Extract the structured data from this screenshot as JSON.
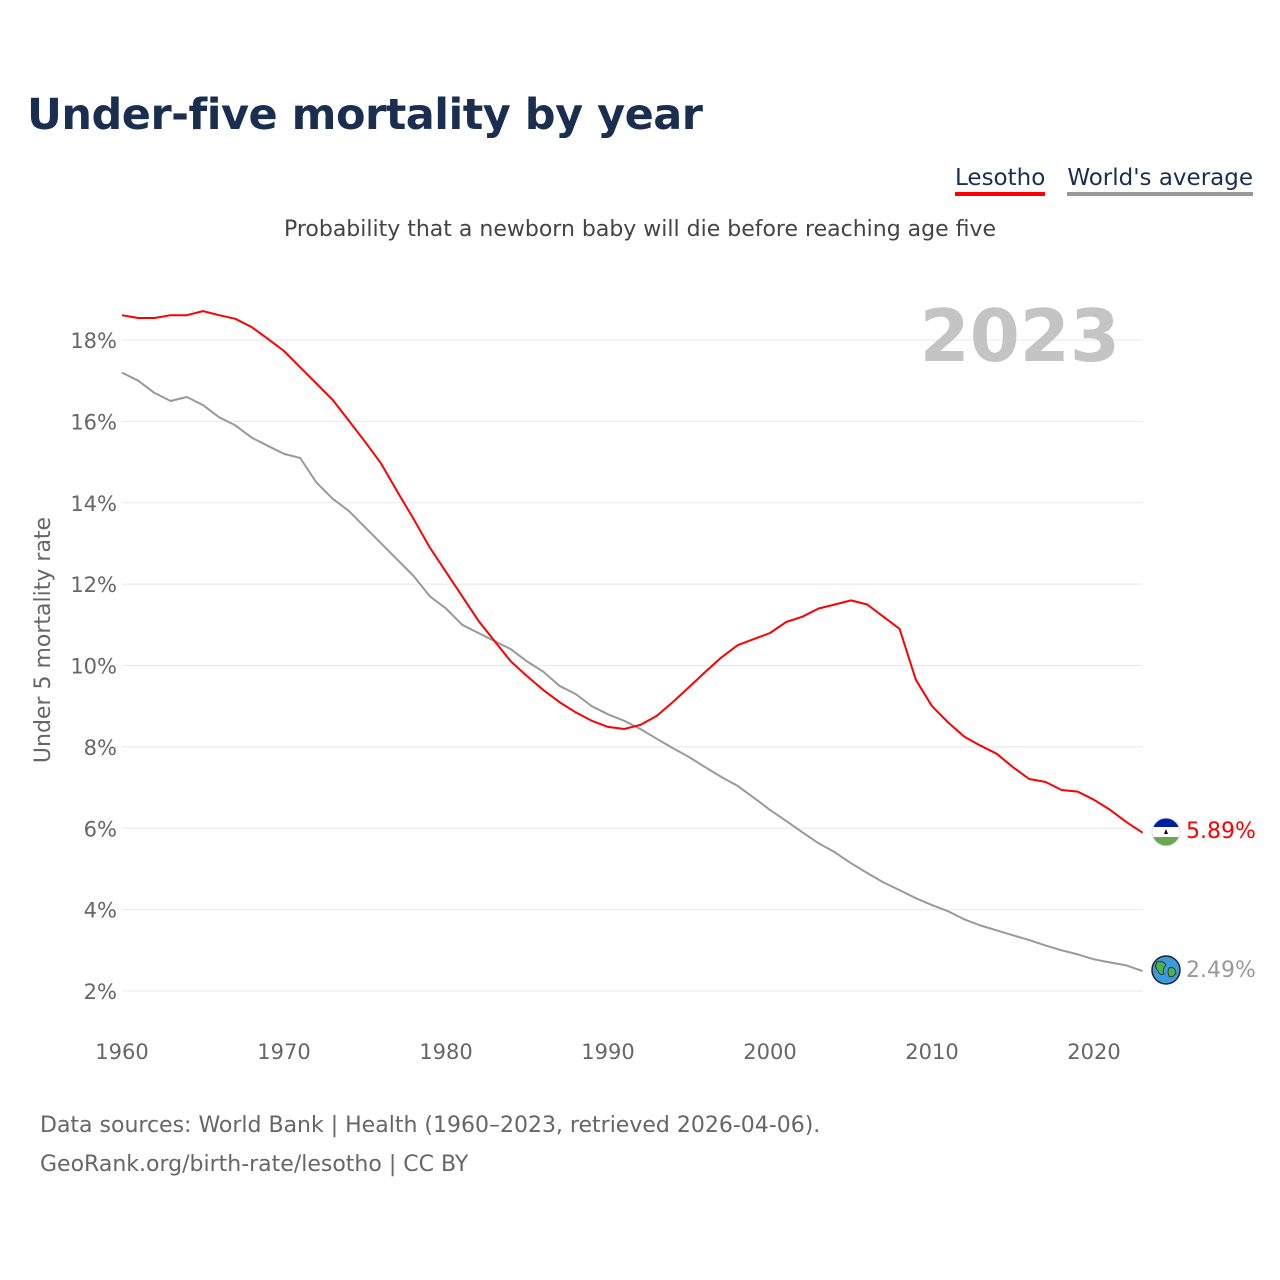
{
  "title": "Under-five mortality by year",
  "legend": {
    "lesotho": "Lesotho",
    "world": "World's average"
  },
  "subtitle": "Probability that a newborn baby will die before reaching age five",
  "year_label": "2023",
  "end_labels": {
    "lesotho": "5.89%",
    "world": "2.49%"
  },
  "icons": {
    "lesotho": "lesotho-flag-icon",
    "world": "globe-icon"
  },
  "colors": {
    "lesotho": "#ff0000",
    "world": "#999999"
  },
  "source": {
    "line1": "Data sources: World Bank | Health (1960–2023, retrieved 2026-04-06).",
    "line2": "GeoRank.org/birth-rate/lesotho | CC BY"
  },
  "chart_data": {
    "type": "line",
    "ylabel": "Under 5 mortality rate",
    "xlabel": "",
    "xlim": [
      1960,
      2023
    ],
    "ylim": [
      1,
      19
    ],
    "xticks": [
      "1960",
      "1970",
      "1980",
      "1990",
      "2000",
      "2010",
      "2020"
    ],
    "yticks": [
      "2%",
      "4%",
      "6%",
      "8%",
      "10%",
      "12%",
      "14%",
      "16%",
      "18%"
    ],
    "grid": true,
    "x": [
      1960,
      1961,
      1962,
      1963,
      1964,
      1965,
      1966,
      1967,
      1968,
      1969,
      1970,
      1971,
      1972,
      1973,
      1974,
      1975,
      1976,
      1977,
      1978,
      1979,
      1980,
      1981,
      1982,
      1983,
      1984,
      1985,
      1986,
      1987,
      1988,
      1989,
      1990,
      1991,
      1992,
      1993,
      1994,
      1995,
      1996,
      1997,
      1998,
      1999,
      2000,
      2001,
      2002,
      2003,
      2004,
      2005,
      2006,
      2007,
      2008,
      2009,
      2010,
      2011,
      2012,
      2013,
      2014,
      2015,
      2016,
      2017,
      2018,
      2019,
      2020,
      2021,
      2022,
      2023
    ],
    "series": [
      {
        "name": "Lesotho",
        "values": [
          18.61,
          18.54,
          18.54,
          18.61,
          18.61,
          18.71,
          18.61,
          18.52,
          18.32,
          18.03,
          17.73,
          17.33,
          16.93,
          16.53,
          16.02,
          15.5,
          14.96,
          14.27,
          13.6,
          12.9,
          12.3,
          11.7,
          11.1,
          10.6,
          10.1,
          9.74,
          9.4,
          9.1,
          8.85,
          8.64,
          8.49,
          8.44,
          8.54,
          8.76,
          9.1,
          9.47,
          9.84,
          10.2,
          10.5,
          10.65,
          10.8,
          11.07,
          11.2,
          11.4,
          11.5,
          11.6,
          11.5,
          11.2,
          10.9,
          9.65,
          9.0,
          8.6,
          8.25,
          8.03,
          7.83,
          7.5,
          7.21,
          7.14,
          6.94,
          6.9,
          6.7,
          6.45,
          6.15,
          5.89
        ]
      },
      {
        "name": "World's average",
        "values": [
          17.2,
          17.0,
          16.7,
          16.5,
          16.6,
          16.4,
          16.1,
          15.9,
          15.6,
          15.4,
          15.2,
          15.1,
          14.5,
          14.1,
          13.8,
          13.4,
          13.0,
          12.6,
          12.2,
          11.7,
          11.4,
          11.0,
          10.8,
          10.6,
          10.4,
          10.1,
          9.85,
          9.5,
          9.3,
          9.0,
          8.8,
          8.64,
          8.44,
          8.2,
          7.97,
          7.75,
          7.5,
          7.26,
          7.04,
          6.75,
          6.45,
          6.18,
          5.9,
          5.63,
          5.41,
          5.14,
          4.9,
          4.67,
          4.48,
          4.28,
          4.11,
          3.96,
          3.76,
          3.61,
          3.49,
          3.37,
          3.25,
          3.12,
          3.0,
          2.9,
          2.78,
          2.7,
          2.63,
          2.49
        ]
      }
    ]
  }
}
